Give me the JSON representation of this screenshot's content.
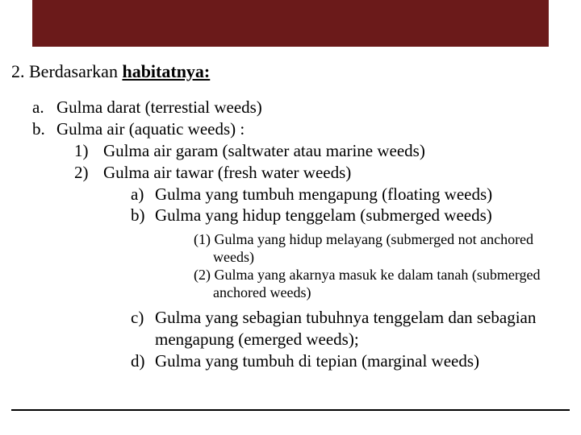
{
  "colors": {
    "title_bar": "#6b1a1a",
    "text": "#000000",
    "background": "#ffffff"
  },
  "heading": {
    "prefix": "2. Berdasarkan ",
    "bold": "habitatnya:"
  },
  "items": {
    "a_mk": "a.",
    "a_txt": "Gulma darat (terrestial weeds)",
    "b_mk": "b.",
    "b_txt": "Gulma air (aquatic weeds) :",
    "b1_mk": "1)",
    "b1_txt": "Gulma air garam (saltwater atau marine weeds)",
    "b2_mk": "2)",
    "b2_txt": "Gulma air tawar (fresh water weeds)",
    "b2a_mk": "a)",
    "b2a_txt": "Gulma yang tumbuh mengapung (floating weeds)",
    "b2b_mk": "b)",
    "b2b_txt": "Gulma yang hidup tenggelam (submerged weeds)",
    "p1": "(1) Gulma yang hidup melayang (submerged not anchored weeds)",
    "p2": "(2) Gulma yang akarnya masuk ke dalam tanah (submerged anchored weeds)",
    "b2c_mk": "c)",
    "b2c_txt": "Gulma yang sebagian tubuhnya tenggelam dan sebagian mengapung (emerged weeds);",
    "b2d_mk": "d)",
    "b2d_txt": "Gulma yang tumbuh di tepian (marginal weeds)"
  }
}
